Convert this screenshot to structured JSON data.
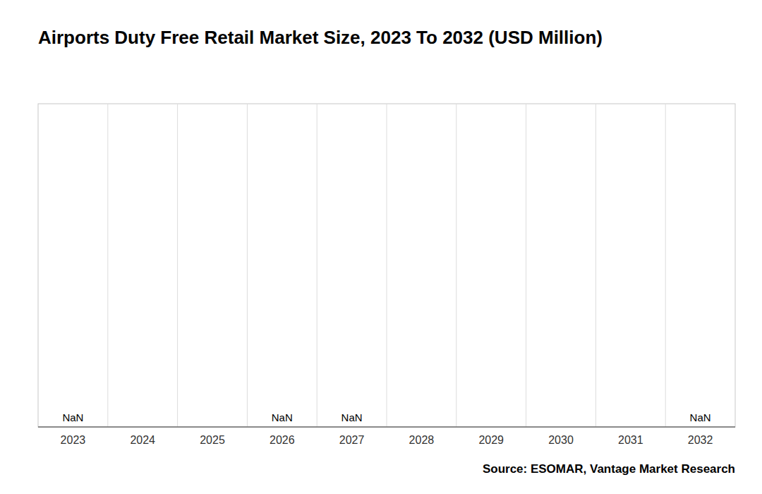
{
  "chart_data": {
    "type": "bar",
    "title": "Airports Duty Free Retail Market Size, 2023 To 2032 (USD Million)",
    "categories": [
      "2023",
      "2024",
      "2025",
      "2026",
      "2027",
      "2028",
      "2029",
      "2030",
      "2031",
      "2032"
    ],
    "values": [
      null,
      null,
      null,
      null,
      null,
      null,
      null,
      null,
      null,
      null
    ],
    "value_labels": [
      "NaN",
      null,
      null,
      "NaN",
      "NaN",
      null,
      null,
      null,
      null,
      "NaN"
    ],
    "data_labels": true,
    "ylim": [
      0,
      1
    ],
    "tick_labels": "x",
    "grid": true,
    "annotations": [
      "Source: ESOMAR, Vantage Market Research"
    ]
  }
}
